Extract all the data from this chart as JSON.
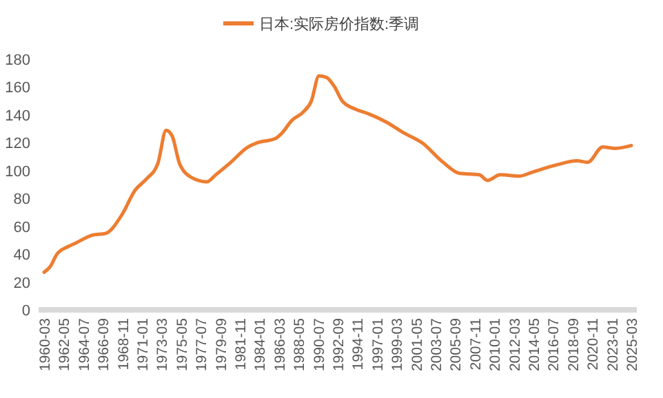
{
  "chart_data": {
    "type": "line",
    "legend": "top",
    "series": [
      {
        "name": "日本:实际房价指数:季调",
        "color": "#ed7d31",
        "x": [
          "1960-03",
          "1960-11",
          "1961-08",
          "1962-11",
          "1963-09",
          "1965-06",
          "1967-01",
          "1968-10",
          "1970-04",
          "1971-07",
          "1972-10",
          "1973-09",
          "1974-05",
          "1975-03",
          "1976-07",
          "1978-03",
          "1979-03",
          "1980-09",
          "1982-10",
          "1983-10",
          "1985-10",
          "1986-07",
          "1987-08",
          "1988-11",
          "1989-10",
          "1990-08",
          "1991-06",
          "1992-05",
          "1993-03",
          "1994-09",
          "1996-01",
          "1998-01",
          "2000-01",
          "2002-01",
          "2004-05",
          "2006-03",
          "2008-05",
          "2009-04",
          "2010-09",
          "2012-10",
          "2014-04",
          "2016-11",
          "2019-03",
          "2020-05",
          "2022-01",
          "2023-06",
          "2025-03"
        ],
        "values": [
          27,
          31,
          40,
          45.5,
          48,
          53.5,
          55,
          68,
          86,
          94,
          105,
          129,
          125,
          105,
          95,
          92,
          97,
          105,
          117,
          120,
          123,
          127,
          136,
          142,
          150,
          168,
          167,
          160,
          150,
          144,
          141,
          135,
          127,
          120,
          106,
          98,
          97,
          93,
          97,
          96,
          99,
          104,
          107,
          106,
          117,
          116,
          118
        ]
      }
    ],
    "xlim": [
      "1960-03",
      "2025-03"
    ],
    "xticks": [
      {
        "value": "1960-03",
        "label": "1960-03"
      },
      {
        "value": "1962-05",
        "label": "1962-05"
      },
      {
        "value": "1964-07",
        "label": "1964-07"
      },
      {
        "value": "1966-09",
        "label": "1966-09"
      },
      {
        "value": "1968-11",
        "label": "1968-11"
      },
      {
        "value": "1971-01",
        "label": "1971-01"
      },
      {
        "value": "1973-03",
        "label": "1973-03"
      },
      {
        "value": "1975-05",
        "label": "1975-05"
      },
      {
        "value": "1977-07",
        "label": "1977-07"
      },
      {
        "value": "1979-09",
        "label": "1979-09"
      },
      {
        "value": "1981-11",
        "label": "1981-11"
      },
      {
        "value": "1984-01",
        "label": "1984-01"
      },
      {
        "value": "1986-03",
        "label": "1986-03"
      },
      {
        "value": "1988-05",
        "label": "1988-05"
      },
      {
        "value": "1990-07",
        "label": "1990-07"
      },
      {
        "value": "1992-09",
        "label": "1992-09"
      },
      {
        "value": "1994-11",
        "label": "1994-11"
      },
      {
        "value": "1997-01",
        "label": "1997-01"
      },
      {
        "value": "1999-03",
        "label": "1999-03"
      },
      {
        "value": "2001-05",
        "label": "2001-05"
      },
      {
        "value": "2003-07",
        "label": "2003-07"
      },
      {
        "value": "2005-09",
        "label": "2005-09"
      },
      {
        "value": "2007-11",
        "label": "2007-11"
      },
      {
        "value": "2010-01",
        "label": "2010-01"
      },
      {
        "value": "2012-03",
        "label": "2012-03"
      },
      {
        "value": "2014-05",
        "label": "2014-05"
      },
      {
        "value": "2016-07",
        "label": "2016-07"
      },
      {
        "value": "2018-09",
        "label": "2018-09"
      },
      {
        "value": "2020-11",
        "label": "2020-11"
      },
      {
        "value": "2023-01",
        "label": "2023-01"
      },
      {
        "value": "2025-03",
        "label": "2025-03"
      }
    ],
    "ylim": [
      0,
      180
    ],
    "yticks": [
      0,
      20,
      40,
      60,
      80,
      100,
      120,
      140,
      160,
      180
    ],
    "grid": false
  }
}
